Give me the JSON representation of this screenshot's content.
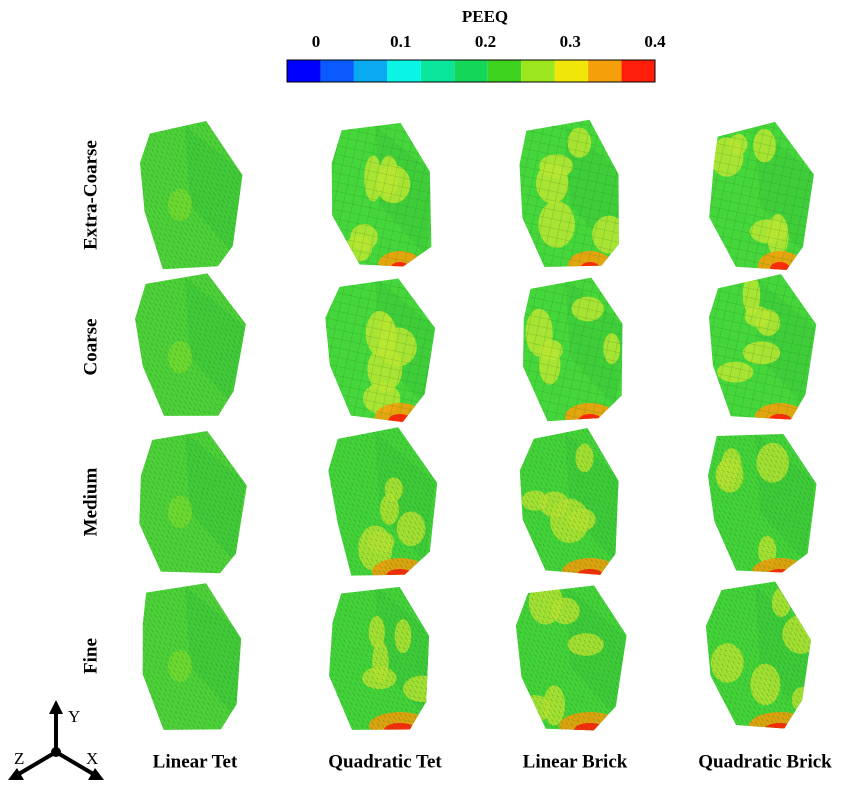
{
  "colorbar": {
    "title": "PEEQ",
    "ticks": [
      0,
      0.1,
      0.2,
      0.3,
      0.4
    ],
    "colors": [
      "#0000ff",
      "#0a5aff",
      "#0aaaf0",
      "#0af5e6",
      "#0ae69b",
      "#14d75a",
      "#3cd21e",
      "#9be61e",
      "#f0e60a",
      "#f5a00a",
      "#ff1e0a"
    ]
  },
  "rows": [
    "Extra-Coarse",
    "Coarse",
    "Medium",
    "Fine"
  ],
  "columns": [
    "Linear Tet",
    "Quadratic Tet",
    "Linear Brick",
    "Quadratic Brick"
  ],
  "triad": {
    "y": "Y",
    "z": "Z",
    "x": "X"
  }
}
